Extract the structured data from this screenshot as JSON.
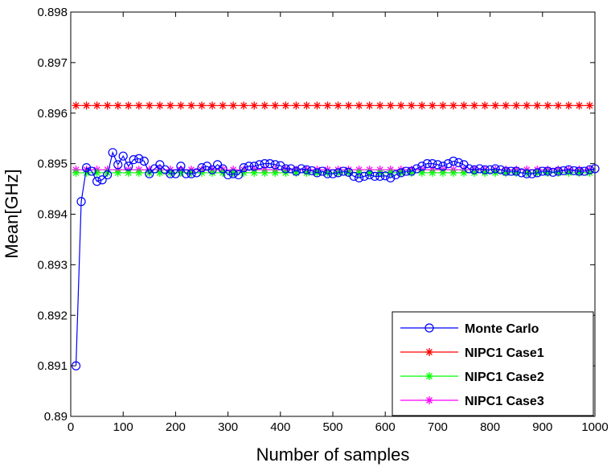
{
  "chart_data": {
    "type": "line",
    "title": "",
    "xlabel": "Number of samples",
    "ylabel": "Mean[GHz]",
    "xlim": [
      0,
      1000
    ],
    "ylim": [
      0.89,
      0.898
    ],
    "xticks": [
      0,
      100,
      200,
      300,
      400,
      500,
      600,
      700,
      800,
      900,
      1000
    ],
    "xtick_labels": [
      "0",
      "100",
      "200",
      "300",
      "400",
      "500",
      "600",
      "700",
      "800",
      "900",
      "1000"
    ],
    "yticks": [
      0.89,
      0.891,
      0.892,
      0.893,
      0.894,
      0.895,
      0.896,
      0.897,
      0.898
    ],
    "ytick_labels": [
      "0.89",
      "0.891",
      "0.892",
      "0.893",
      "0.894",
      "0.895",
      "0.896",
      "0.897",
      "0.898"
    ],
    "grid": false,
    "legend_position": "bottom-right",
    "series": [
      {
        "name": "Monte Carlo",
        "color": "#0000ff",
        "marker": "circle",
        "x": [
          10,
          20,
          30,
          40,
          50,
          60,
          70,
          80,
          90,
          100,
          110,
          120,
          130,
          140,
          150,
          160,
          170,
          180,
          190,
          200,
          210,
          220,
          230,
          240,
          250,
          260,
          270,
          280,
          290,
          300,
          310,
          320,
          330,
          340,
          350,
          360,
          370,
          380,
          390,
          400,
          410,
          420,
          430,
          440,
          450,
          460,
          470,
          480,
          490,
          500,
          510,
          520,
          530,
          540,
          550,
          560,
          570,
          580,
          590,
          600,
          610,
          620,
          630,
          640,
          650,
          660,
          670,
          680,
          690,
          700,
          710,
          720,
          730,
          740,
          750,
          760,
          770,
          780,
          790,
          800,
          810,
          820,
          830,
          840,
          850,
          860,
          870,
          880,
          890,
          900,
          910,
          920,
          930,
          940,
          950,
          960,
          970,
          980,
          990,
          1000
        ],
        "y": [
          0.891,
          0.89425,
          0.89492,
          0.89485,
          0.89465,
          0.89468,
          0.89478,
          0.89522,
          0.89498,
          0.89515,
          0.89495,
          0.89508,
          0.8951,
          0.89505,
          0.8948,
          0.8949,
          0.89498,
          0.89488,
          0.8948,
          0.8948,
          0.89495,
          0.8948,
          0.8948,
          0.89482,
          0.89492,
          0.89495,
          0.89488,
          0.89498,
          0.8949,
          0.89478,
          0.8948,
          0.89478,
          0.89492,
          0.89495,
          0.89495,
          0.89498,
          0.895,
          0.895,
          0.89498,
          0.89496,
          0.8949,
          0.8949,
          0.89485,
          0.8949,
          0.89488,
          0.89486,
          0.89482,
          0.89485,
          0.8948,
          0.8948,
          0.89482,
          0.89485,
          0.89483,
          0.89475,
          0.89472,
          0.89475,
          0.89478,
          0.89475,
          0.89475,
          0.89476,
          0.89472,
          0.89478,
          0.89482,
          0.89485,
          0.89485,
          0.8949,
          0.89495,
          0.895,
          0.895,
          0.89498,
          0.89495,
          0.895,
          0.89505,
          0.89502,
          0.89498,
          0.8949,
          0.89488,
          0.8949,
          0.89488,
          0.89488,
          0.8949,
          0.89488,
          0.89485,
          0.89485,
          0.89485,
          0.89482,
          0.8948,
          0.8948,
          0.89482,
          0.89485,
          0.89485,
          0.89483,
          0.89485,
          0.89486,
          0.89488,
          0.89486,
          0.89485,
          0.89485,
          0.89488,
          0.8949
        ]
      },
      {
        "name": "NIPC1 Case1",
        "color": "#ff0000",
        "marker": "asterisk",
        "x": [
          10,
          30,
          50,
          70,
          90,
          110,
          130,
          150,
          170,
          190,
          210,
          230,
          250,
          270,
          290,
          310,
          330,
          350,
          370,
          390,
          410,
          430,
          450,
          470,
          490,
          510,
          530,
          550,
          570,
          590,
          610,
          630,
          650,
          670,
          690,
          710,
          730,
          750,
          770,
          790,
          810,
          830,
          850,
          870,
          890,
          910,
          930,
          950,
          970,
          990
        ],
        "y": [
          0.89615,
          0.89615,
          0.89615,
          0.89615,
          0.89615,
          0.89615,
          0.89615,
          0.89615,
          0.89615,
          0.89615,
          0.89615,
          0.89615,
          0.89615,
          0.89615,
          0.89615,
          0.89615,
          0.89615,
          0.89615,
          0.89615,
          0.89615,
          0.89615,
          0.89615,
          0.89615,
          0.89615,
          0.89615,
          0.89615,
          0.89615,
          0.89615,
          0.89615,
          0.89615,
          0.89615,
          0.89615,
          0.89615,
          0.89615,
          0.89615,
          0.89615,
          0.89615,
          0.89615,
          0.89615,
          0.89615,
          0.89615,
          0.89615,
          0.89615,
          0.89615,
          0.89615,
          0.89615,
          0.89615,
          0.89615,
          0.89615,
          0.89615
        ]
      },
      {
        "name": "NIPC1 Case2",
        "color": "#00ff00",
        "marker": "asterisk",
        "x": [
          10,
          30,
          50,
          70,
          90,
          110,
          130,
          150,
          170,
          190,
          210,
          230,
          250,
          270,
          290,
          310,
          330,
          350,
          370,
          390,
          410,
          430,
          450,
          470,
          490,
          510,
          530,
          550,
          570,
          590,
          610,
          630,
          650,
          670,
          690,
          710,
          730,
          750,
          770,
          790,
          810,
          830,
          850,
          870,
          890,
          910,
          930,
          950,
          970,
          990
        ],
        "y": [
          0.89482,
          0.89482,
          0.89482,
          0.89482,
          0.89482,
          0.89482,
          0.89482,
          0.89482,
          0.89482,
          0.89482,
          0.89482,
          0.89482,
          0.89482,
          0.89482,
          0.89482,
          0.89482,
          0.89482,
          0.89482,
          0.89482,
          0.89482,
          0.89482,
          0.89482,
          0.89482,
          0.89482,
          0.89482,
          0.89482,
          0.89482,
          0.89482,
          0.89482,
          0.89482,
          0.89482,
          0.89482,
          0.89482,
          0.89482,
          0.89482,
          0.89482,
          0.89482,
          0.89482,
          0.89482,
          0.89482,
          0.89482,
          0.89482,
          0.89482,
          0.89482,
          0.89482,
          0.89482,
          0.89482,
          0.89482,
          0.89482,
          0.89482
        ]
      },
      {
        "name": "NIPC1 Case3",
        "color": "#ff00ff",
        "marker": "asterisk",
        "x": [
          10,
          30,
          50,
          70,
          90,
          110,
          130,
          150,
          170,
          190,
          210,
          230,
          250,
          270,
          290,
          310,
          330,
          350,
          370,
          390,
          410,
          430,
          450,
          470,
          490,
          510,
          530,
          550,
          570,
          590,
          610,
          630,
          650,
          670,
          690,
          710,
          730,
          750,
          770,
          790,
          810,
          830,
          850,
          870,
          890,
          910,
          930,
          950,
          970,
          990
        ],
        "y": [
          0.89488,
          0.89488,
          0.89488,
          0.89488,
          0.89488,
          0.89488,
          0.89488,
          0.89488,
          0.89488,
          0.89488,
          0.89488,
          0.89488,
          0.89488,
          0.89488,
          0.89488,
          0.89488,
          0.89488,
          0.89488,
          0.89488,
          0.89488,
          0.89488,
          0.89488,
          0.89488,
          0.89488,
          0.89488,
          0.89488,
          0.89488,
          0.89488,
          0.89488,
          0.89488,
          0.89488,
          0.89488,
          0.89488,
          0.89488,
          0.89488,
          0.89488,
          0.89488,
          0.89488,
          0.89488,
          0.89488,
          0.89488,
          0.89488,
          0.89488,
          0.89488,
          0.89488,
          0.89488,
          0.89488,
          0.89488,
          0.89488,
          0.89488
        ]
      }
    ]
  }
}
